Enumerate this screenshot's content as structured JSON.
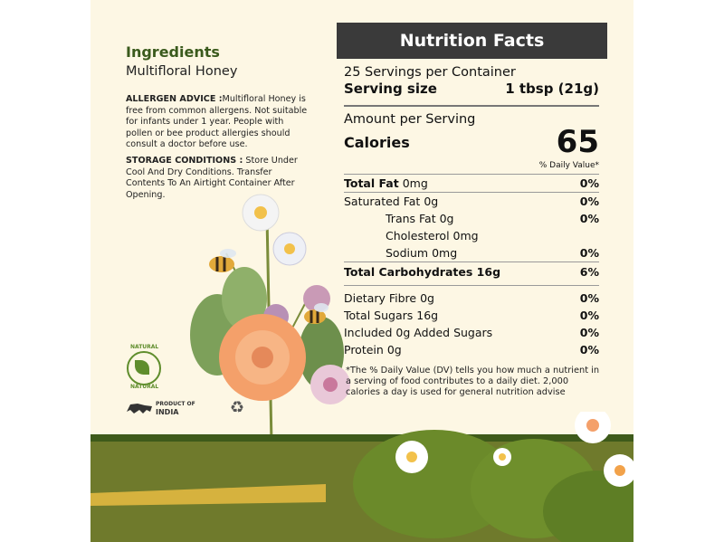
{
  "ingredients": {
    "title": "Ingredients",
    "value": "Multifloral Honey",
    "allergen_label": "ALLERGEN ADVICE :",
    "allergen_text": "Multifloral Honey is free from common allergens. Not suitable for infants under 1 year. People with pollen or bee product allergies should consult a doctor before use.",
    "storage_label": "STORAGE CONDITIONS :",
    "storage_text": " Store Under Cool And Dry Conditions. Transfer Contents To An Airtight Container After Opening."
  },
  "badges": {
    "natural_top": "NATURAL",
    "natural_bottom": "NATURAL",
    "product_of": "PRODUCT OF",
    "country": "INDIA"
  },
  "nutrition": {
    "title": "Nutrition Facts",
    "servings": "25 Servings per Container",
    "serving_size_label": "Serving size",
    "serving_size_value": "1 tbsp (21g)",
    "amount_per_serving": "Amount per Serving",
    "calories_label": "Calories",
    "calories_value": "65",
    "dv_header": "% Daily Value*",
    "rows": [
      {
        "name": "Total Fat",
        "amount": "0mg",
        "pct": "0%"
      },
      {
        "name": "Saturated Fat",
        "amount": "0g",
        "pct": "0%"
      },
      {
        "name": "Trans Fat",
        "amount": "0g",
        "pct": "0%"
      },
      {
        "name": "Cholesterol",
        "amount": "0mg",
        "pct": ""
      },
      {
        "name": "Sodium",
        "amount": "0mg",
        "pct": "0%"
      },
      {
        "name": "Total Carbohydrates",
        "amount": "16g",
        "pct": "6%"
      },
      {
        "name": "Dietary Fibre",
        "amount": "0g",
        "pct": "0%"
      },
      {
        "name": "Total Sugars",
        "amount": "16g",
        "pct": "0%"
      },
      {
        "name": "Included 0g Added Sugars",
        "amount": "",
        "pct": "0%"
      },
      {
        "name": "Protein",
        "amount": "0g",
        "pct": "0%"
      }
    ],
    "footnote": "*The % Daily Value (DV) tells you how much a nutrient in a serving of food contributes to a daily diet. 2,000 calories a day is used for general nutrition advise"
  },
  "colors": {
    "background": "#fdf7e4",
    "header": "#3a3a3a",
    "ingredients_title": "#3a5a1c",
    "ground": "#6f7a2c",
    "leaf": "#6b8a2a",
    "flower": "#f4a06a"
  },
  "icons": [
    "natural-leaf-badge-icon",
    "lion-india-icon",
    "recycle-icon",
    "bee-icon",
    "flower-illustration-icon"
  ]
}
